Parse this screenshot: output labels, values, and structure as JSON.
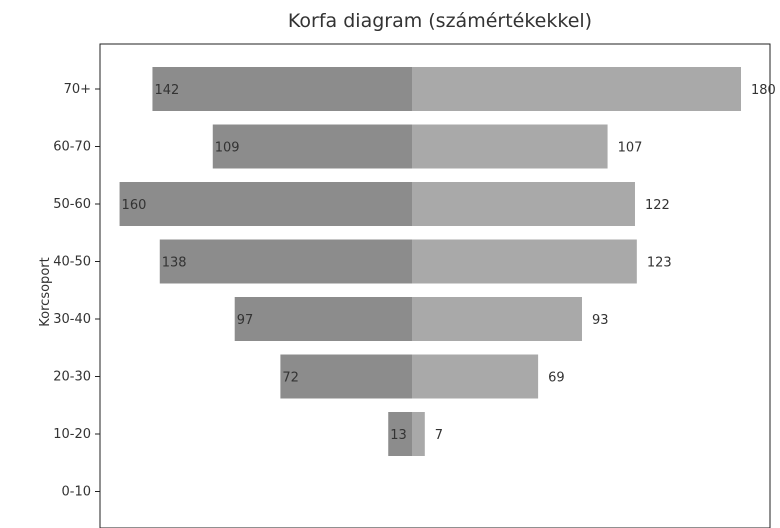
{
  "chart_data": {
    "type": "bar",
    "title": "Korfa diagram (számértékekkel)",
    "xlabel": "",
    "ylabel": "Korcsoport",
    "categories": [
      "70+",
      "60-70",
      "50-60",
      "40-50",
      "30-40",
      "20-30",
      "10-20",
      "0-10"
    ],
    "series": [
      {
        "side": "left",
        "values": [
          142,
          109,
          160,
          138,
          97,
          72,
          13,
          0
        ]
      },
      {
        "side": "right",
        "values": [
          180,
          107,
          122,
          123,
          93,
          69,
          7,
          0
        ]
      }
    ],
    "xlim": [
      -160,
      180
    ],
    "grid": false,
    "colors": {
      "left": "#8c8c8c",
      "right": "#a9a9a9"
    }
  }
}
